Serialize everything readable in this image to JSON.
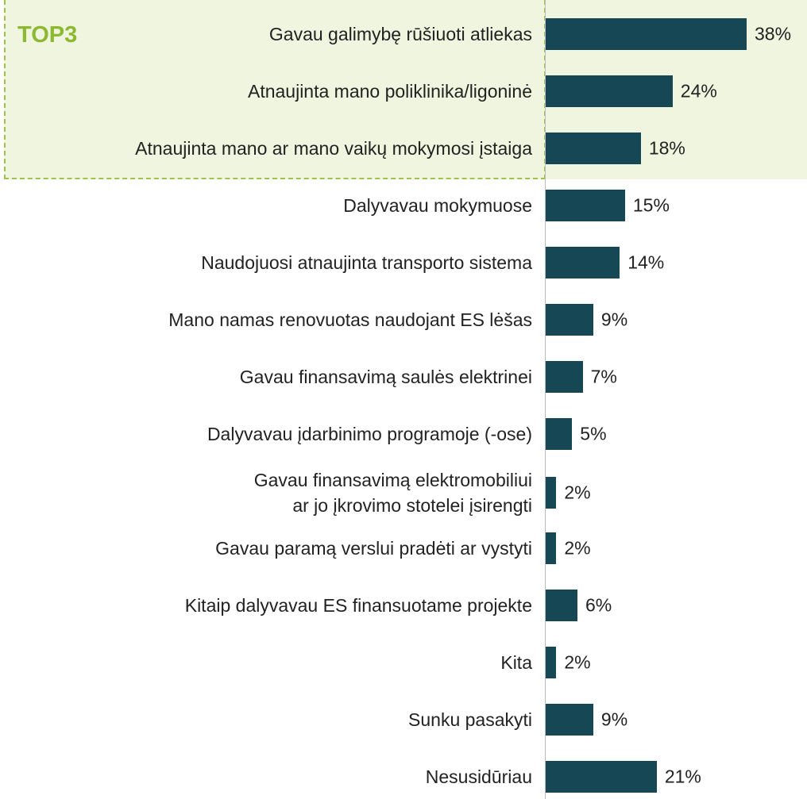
{
  "chart_data": {
    "type": "bar",
    "orientation": "horizontal",
    "highlight_label": "TOP3",
    "highlight_count": 3,
    "categories": [
      "Gavau galimybę rūšiuoti atliekas",
      "Atnaujinta mano poliklinika/ligoninė",
      "Atnaujinta mano ar mano vaikų mokymosi įstaiga",
      "Dalyvavau mokymuose",
      "Naudojuosi atnaujinta transporto sistema",
      "Mano namas renovuotas naudojant ES lėšas",
      "Gavau finansavimą saulės elektrinei",
      "Dalyvavau įdarbinimo programoje (-ose)",
      "Gavau finansavimą elektromobiliui\nar jo įkrovimo stotelei įsirengti",
      "Gavau paramą verslui pradėti ar vystyti",
      "Kitaip dalyvavau ES finansuotame projekte",
      "Kita",
      "Sunku pasakyti",
      "Nesusidūriau"
    ],
    "values": [
      38,
      24,
      18,
      15,
      14,
      9,
      7,
      5,
      2,
      2,
      6,
      2,
      9,
      21
    ],
    "value_labels": [
      "38%",
      "24%",
      "18%",
      "15%",
      "14%",
      "9%",
      "7%",
      "5%",
      "2%",
      "2%",
      "6%",
      "2%",
      "9%",
      "21%"
    ],
    "color": "#154754",
    "highlight_color": "#8cb832"
  }
}
